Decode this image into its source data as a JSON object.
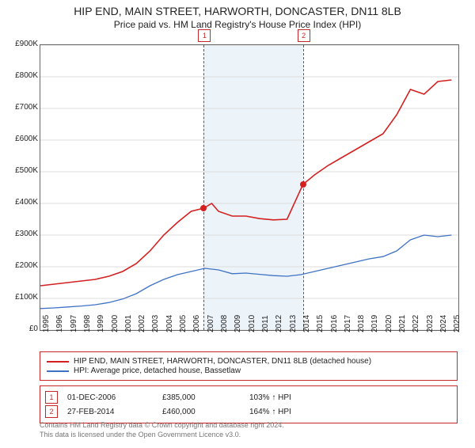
{
  "title": "HIP END, MAIN STREET, HARWORTH, DONCASTER, DN11 8LB",
  "subtitle": "Price paid vs. HM Land Registry's House Price Index (HPI)",
  "chart": {
    "type": "line",
    "background_color": "#ffffff",
    "grid_color": "#dddddd",
    "axis_color": "#666666",
    "xlim": [
      1995,
      2025.5
    ],
    "ylim": [
      0,
      900
    ],
    "yticks": [
      0,
      100,
      200,
      300,
      400,
      500,
      600,
      700,
      800,
      900
    ],
    "ytick_labels": [
      "£0",
      "£100K",
      "£200K",
      "£300K",
      "£400K",
      "£500K",
      "£600K",
      "£700K",
      "£800K",
      "£900K"
    ],
    "xticks": [
      1995,
      1996,
      1997,
      1998,
      1999,
      2000,
      2001,
      2002,
      2003,
      2004,
      2005,
      2006,
      2007,
      2008,
      2009,
      2010,
      2011,
      2012,
      2013,
      2014,
      2015,
      2016,
      2017,
      2018,
      2019,
      2020,
      2021,
      2022,
      2023,
      2024,
      2025
    ],
    "highlight_band": {
      "from": 2006.92,
      "to": 2014.16,
      "color": "#cfe2f0"
    },
    "series": [
      {
        "name": "HIP END, MAIN STREET, HARWORTH, DONCASTER, DN11 8LB (detached house)",
        "color": "#d32020",
        "line_width": 1.6,
        "x": [
          1995,
          1996,
          1997,
          1998,
          1999,
          2000,
          2001,
          2002,
          2003,
          2004,
          2005,
          2006,
          2006.92,
          2007.5,
          2008,
          2009,
          2010,
          2011,
          2012,
          2013,
          2014.16,
          2015,
          2016,
          2017,
          2018,
          2019,
          2020,
          2021,
          2022,
          2023,
          2024,
          2025
        ],
        "y": [
          140,
          145,
          150,
          155,
          160,
          170,
          185,
          210,
          250,
          300,
          340,
          375,
          385,
          400,
          375,
          360,
          360,
          352,
          348,
          350,
          460,
          490,
          520,
          545,
          570,
          595,
          620,
          680,
          760,
          745,
          785,
          790
        ]
      },
      {
        "name": "HPI: Average price, detached house, Bassetlaw",
        "color": "#3f72c4",
        "line_width": 1.3,
        "x": [
          1995,
          1996,
          1997,
          1998,
          1999,
          2000,
          2001,
          2002,
          2003,
          2004,
          2005,
          2006,
          2007,
          2008,
          2009,
          2010,
          2011,
          2012,
          2013,
          2014,
          2015,
          2016,
          2017,
          2018,
          2019,
          2020,
          2021,
          2022,
          2023,
          2024,
          2025
        ],
        "y": [
          68,
          70,
          73,
          76,
          80,
          87,
          98,
          115,
          140,
          160,
          175,
          185,
          195,
          190,
          178,
          180,
          176,
          172,
          170,
          175,
          185,
          195,
          205,
          215,
          225,
          232,
          250,
          285,
          300,
          295,
          300
        ]
      }
    ],
    "sale_markers": [
      {
        "n": "1",
        "x": 2006.92,
        "y": 385,
        "color": "#d32020"
      },
      {
        "n": "2",
        "x": 2014.16,
        "y": 460,
        "color": "#d32020"
      }
    ]
  },
  "legend": {
    "border_color": "#c62828",
    "items": [
      {
        "color": "#d32020",
        "label": "HIP END, MAIN STREET, HARWORTH, DONCASTER, DN11 8LB (detached house)"
      },
      {
        "color": "#3f72c4",
        "label": "HPI: Average price, detached house, Bassetlaw"
      }
    ]
  },
  "sales": [
    {
      "n": "1",
      "date": "01-DEC-2006",
      "price": "£385,000",
      "pct": "103% ↑ HPI"
    },
    {
      "n": "2",
      "date": "27-FEB-2014",
      "price": "£460,000",
      "pct": "164% ↑ HPI"
    }
  ],
  "footnote_l1": "Contains HM Land Registry data © Crown copyright and database right 2024.",
  "footnote_l2": "This data is licensed under the Open Government Licence v3.0."
}
